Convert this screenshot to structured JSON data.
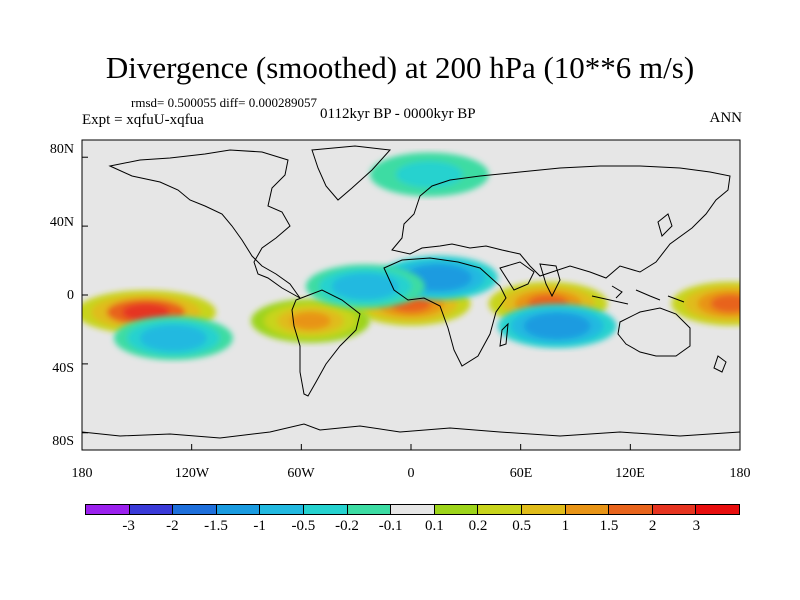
{
  "title": "Divergence (smoothed) at 200 hPa (10**6 m/s)",
  "stats": "rmsd= 0.500055 diff= 0.000289057",
  "experiment": "Expt = xqfuU-xqfua",
  "period": "0112kyr BP - 0000kyr BP",
  "season": "ANN",
  "y_ticks": [
    "80N",
    "40N",
    "0",
    "40S",
    "80S"
  ],
  "x_ticks": [
    "180",
    "120W",
    "60W",
    "0",
    "60E",
    "120E",
    "180"
  ],
  "colorbar": {
    "labels": [
      "-3",
      "-2",
      "-1.5",
      "-1",
      "-0.5",
      "-0.2",
      "-0.1",
      "0.1",
      "0.2",
      "0.5",
      "1",
      "1.5",
      "2",
      "3"
    ],
    "colors": [
      "#9b21ee",
      "#3a3ad8",
      "#1e6fdb",
      "#1a9be0",
      "#22b9e0",
      "#25d2cf",
      "#3cdca3",
      "#e6e6e6",
      "#9dd41a",
      "#c8d41c",
      "#e0bc1a",
      "#e89416",
      "#e8641c",
      "#e63420",
      "#e80e0e"
    ]
  },
  "chart_data": {
    "type": "heatmap",
    "title": "Divergence (smoothed) at 200 hPa (10**6 m/s)",
    "variable": "Divergence (smoothed) at 200 hPa",
    "units": "10**6 m/s",
    "x_range": [
      -180,
      180
    ],
    "y_range": [
      -90,
      90
    ],
    "contour_levels": [
      -3,
      -2,
      -1.5,
      -1,
      -0.5,
      -0.2,
      -0.1,
      0.1,
      0.2,
      0.5,
      1,
      1.5,
      2,
      3
    ],
    "features": [
      {
        "name": "central Pacific maximum",
        "lon": -145,
        "lat": -10,
        "value": 2.5
      },
      {
        "name": "west Atlantic / Africa band",
        "lon": 0,
        "lat": -5,
        "value": 1.5
      },
      {
        "name": "Indian Ocean maximum",
        "lon": 75,
        "lat": -5,
        "value": 1.5
      },
      {
        "name": "date-line maximum",
        "lon": 175,
        "lat": -5,
        "value": 1.5
      },
      {
        "name": "South America maximum",
        "lon": -55,
        "lat": -15,
        "value": 1
      },
      {
        "name": "south Indian Ocean minimum",
        "lon": 80,
        "lat": -18,
        "value": -1.5
      },
      {
        "name": "North Africa minimum",
        "lon": 15,
        "lat": 10,
        "value": -1.5
      },
      {
        "name": "equatorial Atlantic minimum",
        "lon": -25,
        "lat": 5,
        "value": -1
      },
      {
        "name": "east Pacific minimum",
        "lon": -130,
        "lat": -25,
        "value": -1
      },
      {
        "name": "Arctic band",
        "lon": 10,
        "lat": 70,
        "value": -0.5
      }
    ]
  }
}
